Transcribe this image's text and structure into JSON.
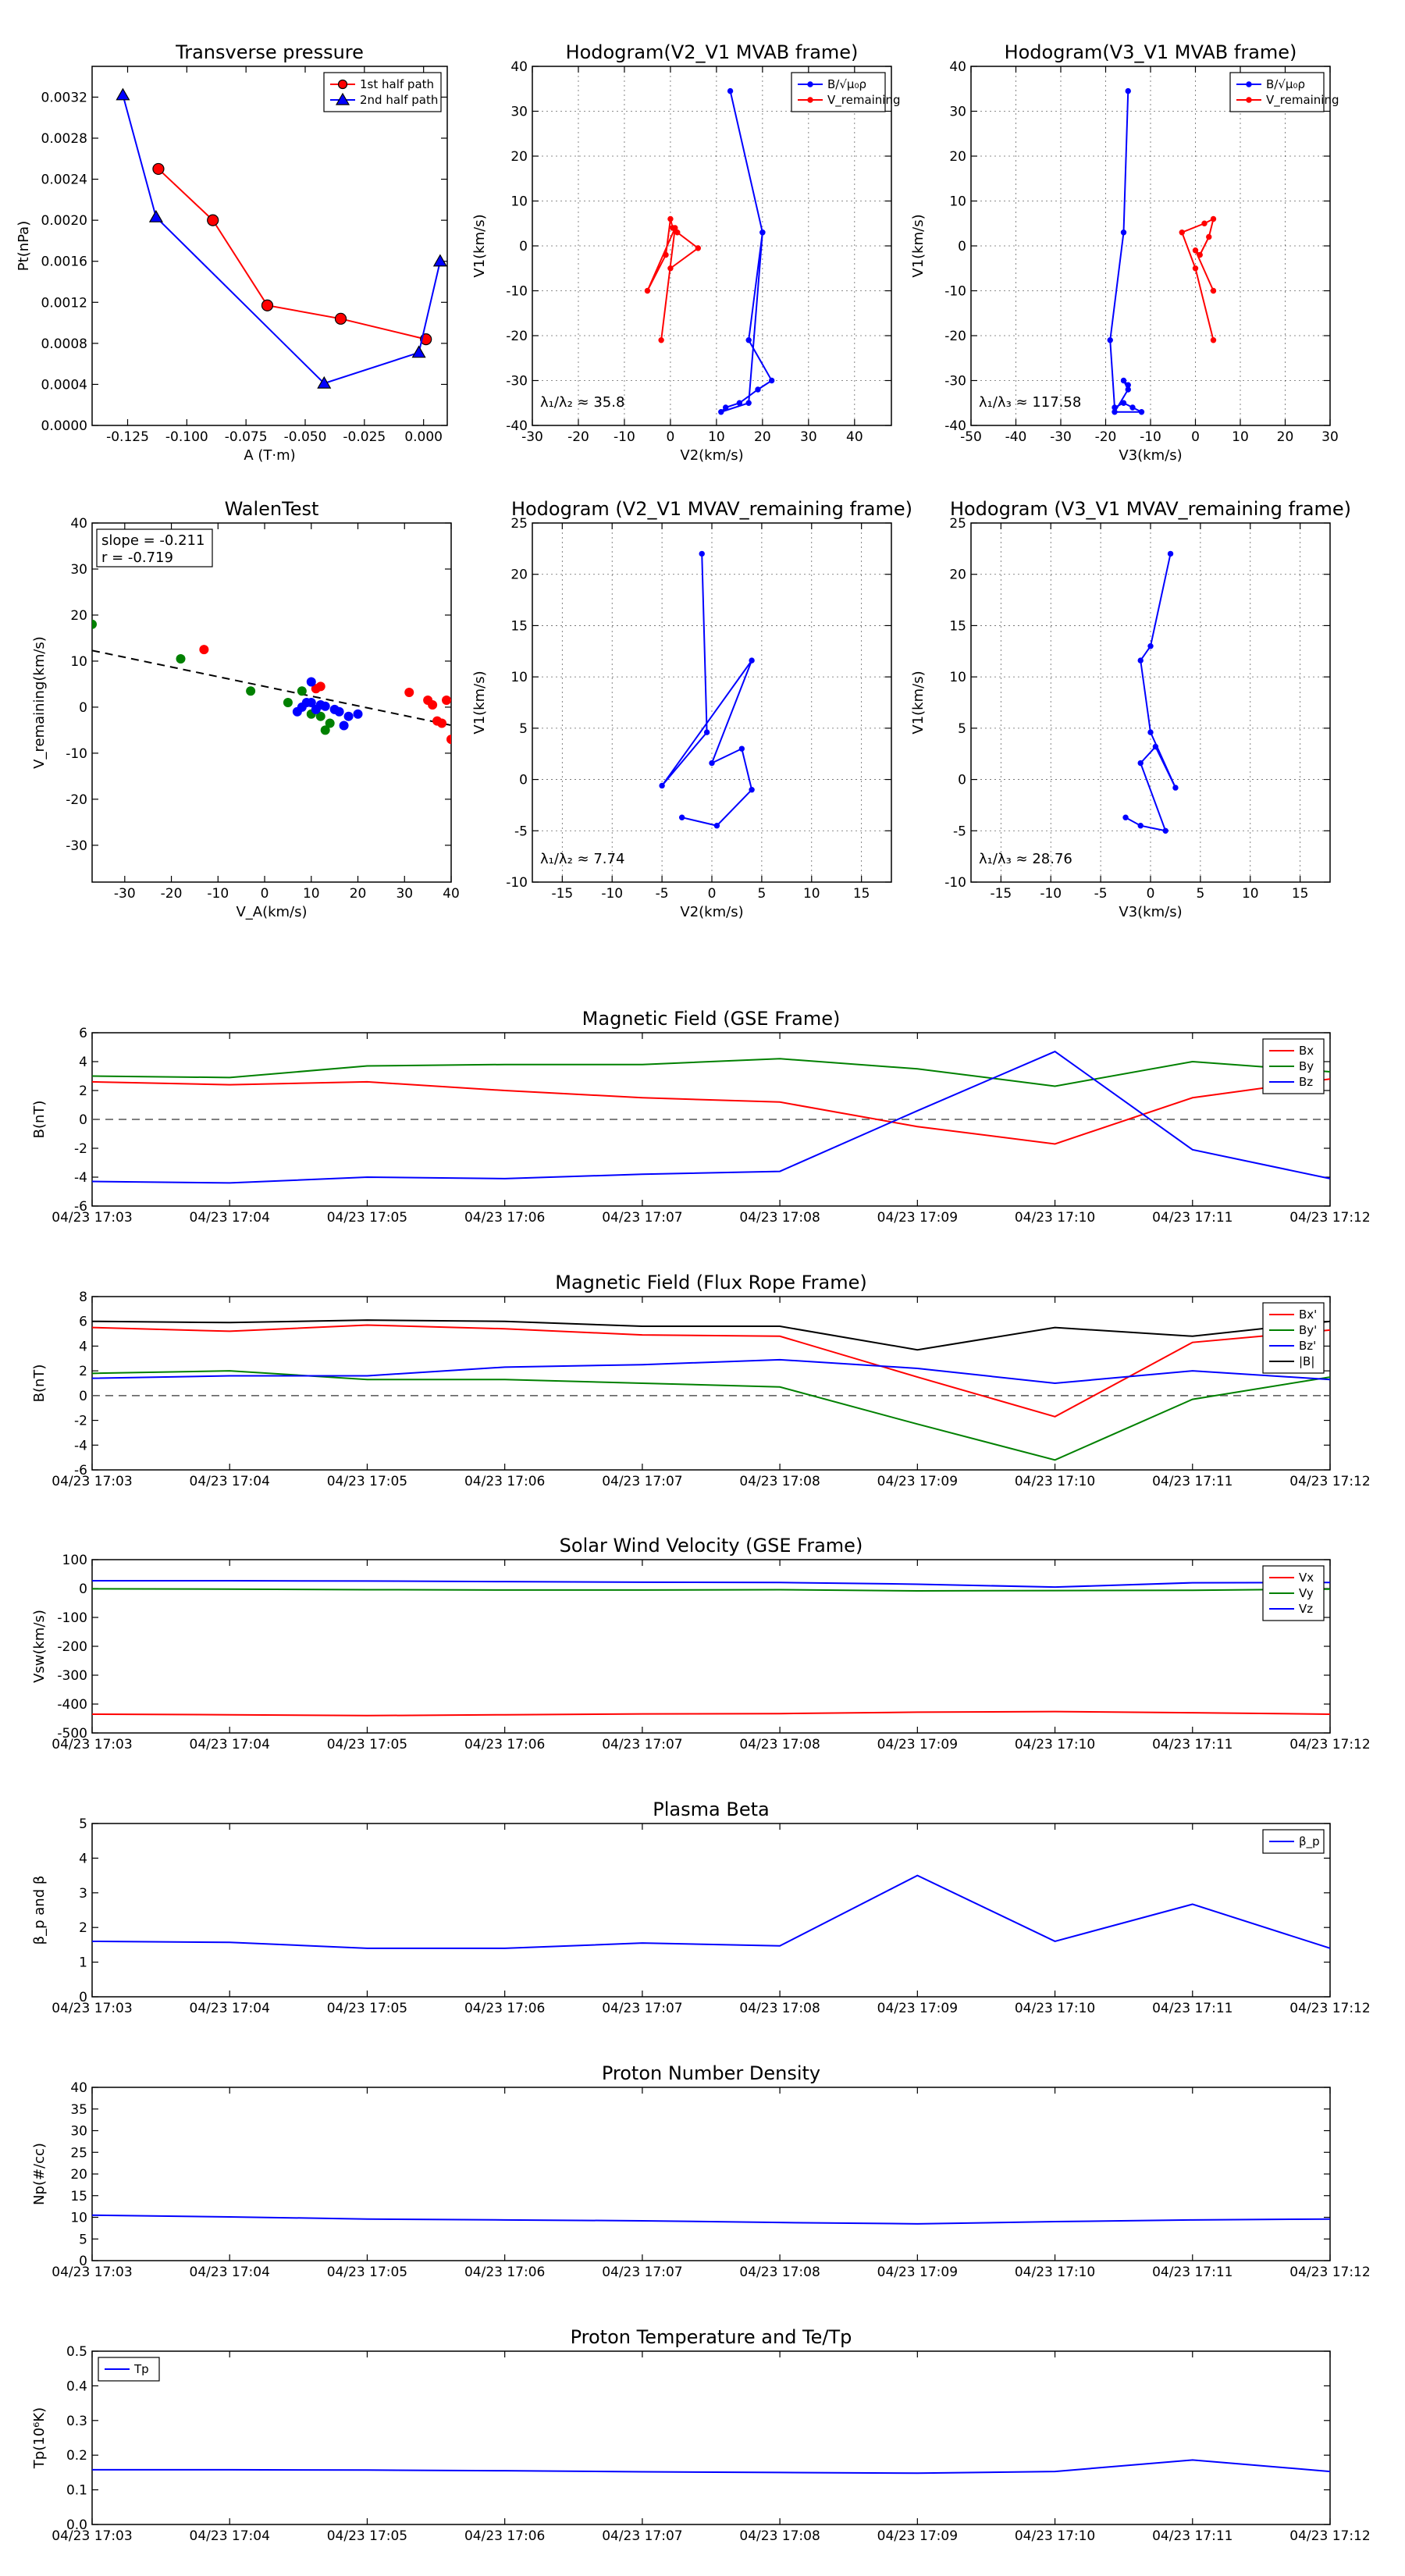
{
  "chart_data": [
    {
      "id": "pt",
      "type": "line",
      "title": "Transverse pressure",
      "xlabel": "A (T·m)",
      "ylabel": "Pt(nPa)",
      "xlim": [
        -0.14,
        0.01
      ],
      "ylim": [
        0,
        0.0035
      ],
      "xticks": [
        -0.125,
        -0.1,
        -0.075,
        -0.05,
        -0.025,
        0.0
      ],
      "xtick_labels": [
        "-0.125",
        "-0.100",
        "-0.075",
        "-0.050",
        "-0.025",
        "0.000"
      ],
      "yticks": [
        0,
        0.0004,
        0.0008,
        0.0012,
        0.0016,
        0.002,
        0.0024,
        0.0028,
        0.0032
      ],
      "ytick_labels": [
        "0.0000",
        "0.0004",
        "0.0008",
        "0.0012",
        "0.0016",
        "0.0020",
        "0.0024",
        "0.0028",
        "0.0032"
      ],
      "grid": false,
      "legend": "top-right",
      "series": [
        {
          "name": "1st half path",
          "color": "#ff0000",
          "marker": "circle",
          "x": [
            -0.112,
            -0.089,
            -0.066,
            -0.035,
            0.001
          ],
          "y": [
            0.0025,
            0.002,
            0.00117,
            0.00104,
            0.00084
          ]
        },
        {
          "name": "2nd half path",
          "color": "#0000ff",
          "marker": "triangle",
          "x": [
            -0.127,
            -0.113,
            -0.042,
            -0.002,
            0.007
          ],
          "y": [
            0.00322,
            0.00203,
            0.00041,
            0.00071,
            0.0016
          ]
        }
      ]
    },
    {
      "id": "h1",
      "type": "line",
      "title": "Hodogram(V2_V1 MVAB frame)",
      "xlabel": "V2(km/s)",
      "ylabel": "V1(km/s)",
      "xlim": [
        -30,
        48
      ],
      "ylim": [
        -40,
        40
      ],
      "xticks": [
        -30,
        -20,
        -10,
        0,
        10,
        20,
        30,
        40
      ],
      "yticks": [
        -40,
        -30,
        -20,
        -10,
        0,
        10,
        20,
        30,
        40
      ],
      "grid": true,
      "legend": "top-right",
      "annotation": "λ₁/λ₂ ≈ 35.8",
      "series": [
        {
          "name": "B/√μ₀ρ",
          "color": "#0000ff",
          "marker": "dot",
          "x": [
            13,
            20,
            17,
            22,
            19,
            15,
            12,
            11,
            17,
            20
          ],
          "y": [
            34.5,
            3,
            -21,
            -30,
            -32,
            -35,
            -36,
            -37,
            -35,
            3
          ]
        },
        {
          "name": "V_remaining",
          "color": "#ff0000",
          "marker": "dot",
          "x": [
            -2,
            1,
            -5,
            -1,
            0,
            0.5,
            1.5,
            6,
            0
          ],
          "y": [
            -21,
            4,
            -10,
            -2,
            6,
            4,
            3,
            -0.5,
            -5
          ]
        }
      ]
    },
    {
      "id": "h2",
      "type": "line",
      "title": "Hodogram(V3_V1 MVAB frame)",
      "xlabel": "V3(km/s)",
      "ylabel": "V1(km/s)",
      "xlim": [
        -50,
        30
      ],
      "ylim": [
        -40,
        40
      ],
      "xticks": [
        -50,
        -40,
        -30,
        -20,
        -10,
        0,
        10,
        20,
        30
      ],
      "yticks": [
        -40,
        -30,
        -20,
        -10,
        0,
        10,
        20,
        30,
        40
      ],
      "grid": true,
      "legend": "top-right",
      "annotation": "λ₁/λ₃ ≈ 117.58",
      "series": [
        {
          "name": "B/√μ₀ρ",
          "color": "#0000ff",
          "marker": "dot",
          "x": [
            -15,
            -16,
            -19,
            -18,
            -16,
            -14,
            -12,
            -18,
            -15,
            -16,
            -15
          ],
          "y": [
            34.5,
            3,
            -21,
            -36,
            -35,
            -36,
            -37,
            -37,
            -32,
            -30,
            -31
          ]
        },
        {
          "name": "V_remaining",
          "color": "#ff0000",
          "marker": "dot",
          "x": [
            4,
            0,
            -3,
            2,
            4,
            3,
            1,
            0,
            4
          ],
          "y": [
            -21,
            -5,
            3,
            5,
            6,
            2,
            -2,
            -1,
            -10
          ]
        }
      ]
    },
    {
      "id": "walen",
      "type": "scatter",
      "title": "WalenTest",
      "xlabel": "V_A(km/s)",
      "ylabel": "V_remaining(km/s)",
      "xlim": [
        -37,
        40
      ],
      "ylim": [
        -38,
        40
      ],
      "xticks": [
        -30,
        -20,
        -10,
        0,
        10,
        20,
        30,
        40
      ],
      "yticks": [
        -30,
        -20,
        -10,
        0,
        10,
        20,
        30,
        40
      ],
      "grid": false,
      "annotation_lines": [
        "slope = -0.211",
        "r = -0.719"
      ],
      "fit_line": {
        "slope": -0.211,
        "intercept": 4.5,
        "color": "#000000",
        "style": "dashed"
      },
      "series": [
        {
          "name": "red",
          "color": "#ff0000",
          "x": [
            -13,
            12,
            31,
            35,
            36,
            37,
            38,
            40,
            39,
            11
          ],
          "y": [
            12.5,
            4.5,
            3.2,
            1.5,
            0.5,
            -3,
            -3.5,
            -7,
            1.5,
            4
          ]
        },
        {
          "name": "green",
          "color": "#008000",
          "x": [
            -37,
            -18,
            -3,
            5,
            8,
            10,
            12,
            13,
            14
          ],
          "y": [
            18,
            10.5,
            3.5,
            1,
            3.5,
            -1.5,
            -2,
            -5,
            -3.5
          ]
        },
        {
          "name": "blue",
          "color": "#0000ff",
          "x": [
            7,
            8,
            9,
            10,
            11,
            12,
            13,
            15,
            16,
            17,
            18,
            20,
            10
          ],
          "y": [
            -1,
            0,
            1,
            5.5,
            -0.5,
            0.5,
            0.2,
            -0.5,
            -1,
            -4,
            -2,
            -1.5,
            1
          ]
        }
      ]
    },
    {
      "id": "h3",
      "type": "line",
      "title": "Hodogram (V2_V1 MVAV_remaining frame)",
      "xlabel": "V2(km/s)",
      "ylabel": "V1(km/s)",
      "xlim": [
        -18,
        18
      ],
      "ylim": [
        -10,
        25
      ],
      "xticks": [
        -15,
        -10,
        -5,
        0,
        5,
        10,
        15
      ],
      "yticks": [
        -10,
        -5,
        0,
        5,
        10,
        15,
        20,
        25
      ],
      "grid": true,
      "annotation": "λ₁/λ₂ ≈ 7.74",
      "series": [
        {
          "name": "",
          "color": "#0000ff",
          "marker": "dot",
          "x": [
            -1,
            -0.5,
            -5,
            4,
            0,
            3,
            4,
            0.5,
            -3
          ],
          "y": [
            22,
            4.6,
            -0.6,
            11.6,
            1.6,
            3,
            -1,
            -4.5,
            -3.7
          ]
        }
      ]
    },
    {
      "id": "h4",
      "type": "line",
      "title": "Hodogram (V3_V1 MVAV_remaining frame)",
      "xlabel": "V3(km/s)",
      "ylabel": "V1(km/s)",
      "xlim": [
        -18,
        18
      ],
      "ylim": [
        -10,
        25
      ],
      "xticks": [
        -15,
        -10,
        -5,
        0,
        5,
        10,
        15
      ],
      "yticks": [
        -10,
        -5,
        0,
        5,
        10,
        15,
        20,
        25
      ],
      "grid": true,
      "annotation": "λ₁/λ₃ ≈ 28.76",
      "series": [
        {
          "name": "",
          "color": "#0000ff",
          "marker": "dot",
          "x": [
            2,
            0,
            -1,
            0,
            2.5,
            0.5,
            -1,
            1.5,
            -1,
            -2.5
          ],
          "y": [
            22,
            13,
            11.6,
            4.6,
            -0.8,
            3.2,
            1.6,
            -5,
            -4.5,
            -3.7
          ]
        }
      ]
    },
    {
      "id": "bgse",
      "type": "line",
      "title": "Magnetic Field (GSE Frame)",
      "xlabel": "",
      "ylabel": "B(nT)",
      "x": [
        "04/23 17:03",
        "04/23 17:04",
        "04/23 17:05",
        "04/23 17:06",
        "04/23 17:07",
        "04/23 17:08",
        "04/23 17:09",
        "04/23 17:10",
        "04/23 17:11",
        "04/23 17:12"
      ],
      "ylim": [
        -6,
        6
      ],
      "yticks": [
        -6,
        -4,
        -2,
        0,
        2,
        4,
        6
      ],
      "zero_line": true,
      "legend": "top-right",
      "series": [
        {
          "name": "Bx",
          "color": "#ff0000",
          "values": [
            2.6,
            2.4,
            2.6,
            2.0,
            1.5,
            1.2,
            -0.5,
            -1.7,
            1.5,
            2.8
          ]
        },
        {
          "name": "By",
          "color": "#008000",
          "values": [
            3.0,
            2.9,
            3.7,
            3.8,
            3.8,
            4.2,
            3.5,
            2.3,
            4.0,
            3.3
          ]
        },
        {
          "name": "Bz",
          "color": "#0000ff",
          "values": [
            -4.3,
            -4.4,
            -4.0,
            -4.1,
            -3.8,
            -3.6,
            0.6,
            4.7,
            -2.1,
            -4.1
          ]
        }
      ]
    },
    {
      "id": "bfr",
      "type": "line",
      "title": "Magnetic Field (Flux Rope Frame)",
      "xlabel": "",
      "ylabel": "B(nT)",
      "x": [
        "04/23 17:03",
        "04/23 17:04",
        "04/23 17:05",
        "04/23 17:06",
        "04/23 17:07",
        "04/23 17:08",
        "04/23 17:09",
        "04/23 17:10",
        "04/23 17:11",
        "04/23 17:12"
      ],
      "ylim": [
        -6,
        8
      ],
      "yticks": [
        -6,
        -4,
        -2,
        0,
        2,
        4,
        6,
        8
      ],
      "zero_line": true,
      "legend": "top-right",
      "series": [
        {
          "name": "Bx'",
          "color": "#ff0000",
          "values": [
            5.5,
            5.2,
            5.7,
            5.4,
            4.9,
            4.8,
            1.5,
            -1.7,
            4.3,
            5.3
          ]
        },
        {
          "name": "By'",
          "color": "#008000",
          "values": [
            1.8,
            2.0,
            1.3,
            1.3,
            1.0,
            0.7,
            -2.3,
            -5.2,
            -0.3,
            1.5
          ]
        },
        {
          "name": "Bz'",
          "color": "#0000ff",
          "values": [
            1.4,
            1.6,
            1.6,
            2.3,
            2.5,
            2.9,
            2.2,
            1.0,
            2.0,
            1.3
          ]
        },
        {
          "name": "|B|",
          "color": "#000000",
          "values": [
            6.0,
            5.9,
            6.1,
            6.0,
            5.6,
            5.6,
            3.7,
            5.5,
            4.8,
            6.0
          ]
        }
      ]
    },
    {
      "id": "vsw",
      "type": "line",
      "title": "Solar Wind Velocity (GSE Frame)",
      "xlabel": "",
      "ylabel": "Vsw(km/s)",
      "x": [
        "04/23 17:03",
        "04/23 17:04",
        "04/23 17:05",
        "04/23 17:06",
        "04/23 17:07",
        "04/23 17:08",
        "04/23 17:09",
        "04/23 17:10",
        "04/23 17:11",
        "04/23 17:12"
      ],
      "ylim": [
        -500,
        100
      ],
      "yticks": [
        -500,
        -400,
        -300,
        -200,
        -100,
        0,
        100
      ],
      "legend": "top-right",
      "series": [
        {
          "name": "Vx",
          "color": "#ff0000",
          "values": [
            -435,
            -437,
            -440,
            -437,
            -434,
            -433,
            -428,
            -426,
            -430,
            -435
          ]
        },
        {
          "name": "Vy",
          "color": "#008000",
          "values": [
            -1,
            -2,
            -4,
            -5,
            -5,
            -4,
            -8,
            -7,
            -6,
            -2
          ]
        },
        {
          "name": "Vz",
          "color": "#0000ff",
          "values": [
            27,
            27,
            26,
            24,
            22,
            21,
            15,
            5,
            20,
            21
          ]
        }
      ]
    },
    {
      "id": "beta",
      "type": "line",
      "title": "Plasma Beta",
      "xlabel": "",
      "ylabel": "β_p and β",
      "x": [
        "04/23 17:03",
        "04/23 17:04",
        "04/23 17:05",
        "04/23 17:06",
        "04/23 17:07",
        "04/23 17:08",
        "04/23 17:09",
        "04/23 17:10",
        "04/23 17:11",
        "04/23 17:12"
      ],
      "ylim": [
        0,
        5
      ],
      "yticks": [
        0,
        1,
        2,
        3,
        4,
        5
      ],
      "legend": "top-right",
      "series": [
        {
          "name": "β_p",
          "color": "#0000ff",
          "values": [
            1.6,
            1.57,
            1.4,
            1.4,
            1.55,
            1.47,
            3.5,
            1.6,
            2.67,
            1.4
          ]
        }
      ]
    },
    {
      "id": "np",
      "type": "line",
      "title": "Proton Number Density",
      "xlabel": "",
      "ylabel": "Np(#/cc)",
      "x": [
        "04/23 17:03",
        "04/23 17:04",
        "04/23 17:05",
        "04/23 17:06",
        "04/23 17:07",
        "04/23 17:08",
        "04/23 17:09",
        "04/23 17:10",
        "04/23 17:11",
        "04/23 17:12"
      ],
      "ylim": [
        0,
        40
      ],
      "yticks": [
        0,
        5,
        10,
        15,
        20,
        25,
        30,
        35,
        40
      ],
      "series": [
        {
          "name": "",
          "color": "#0000ff",
          "values": [
            10.5,
            10.1,
            9.6,
            9.4,
            9.2,
            8.8,
            8.5,
            9.0,
            9.4,
            9.6
          ]
        }
      ]
    },
    {
      "id": "tp",
      "type": "line",
      "title": "Proton Temperature and Te/Tp",
      "xlabel": "",
      "ylabel": "Tp(10⁶K)",
      "x": [
        "04/23 17:03",
        "04/23 17:04",
        "04/23 17:05",
        "04/23 17:06",
        "04/23 17:07",
        "04/23 17:08",
        "04/23 17:09",
        "04/23 17:10",
        "04/23 17:11",
        "04/23 17:12"
      ],
      "ylim": [
        0,
        0.5
      ],
      "yticks": [
        0,
        0.1,
        0.2,
        0.3,
        0.4,
        0.5
      ],
      "ytick_labels": [
        "0.0",
        "0.1",
        "0.2",
        "0.3",
        "0.4",
        "0.5"
      ],
      "legend": "top-left",
      "series": [
        {
          "name": "Tp",
          "color": "#0000ff",
          "values": [
            0.158,
            0.158,
            0.157,
            0.155,
            0.152,
            0.15,
            0.148,
            0.153,
            0.186,
            0.153
          ]
        }
      ]
    }
  ]
}
